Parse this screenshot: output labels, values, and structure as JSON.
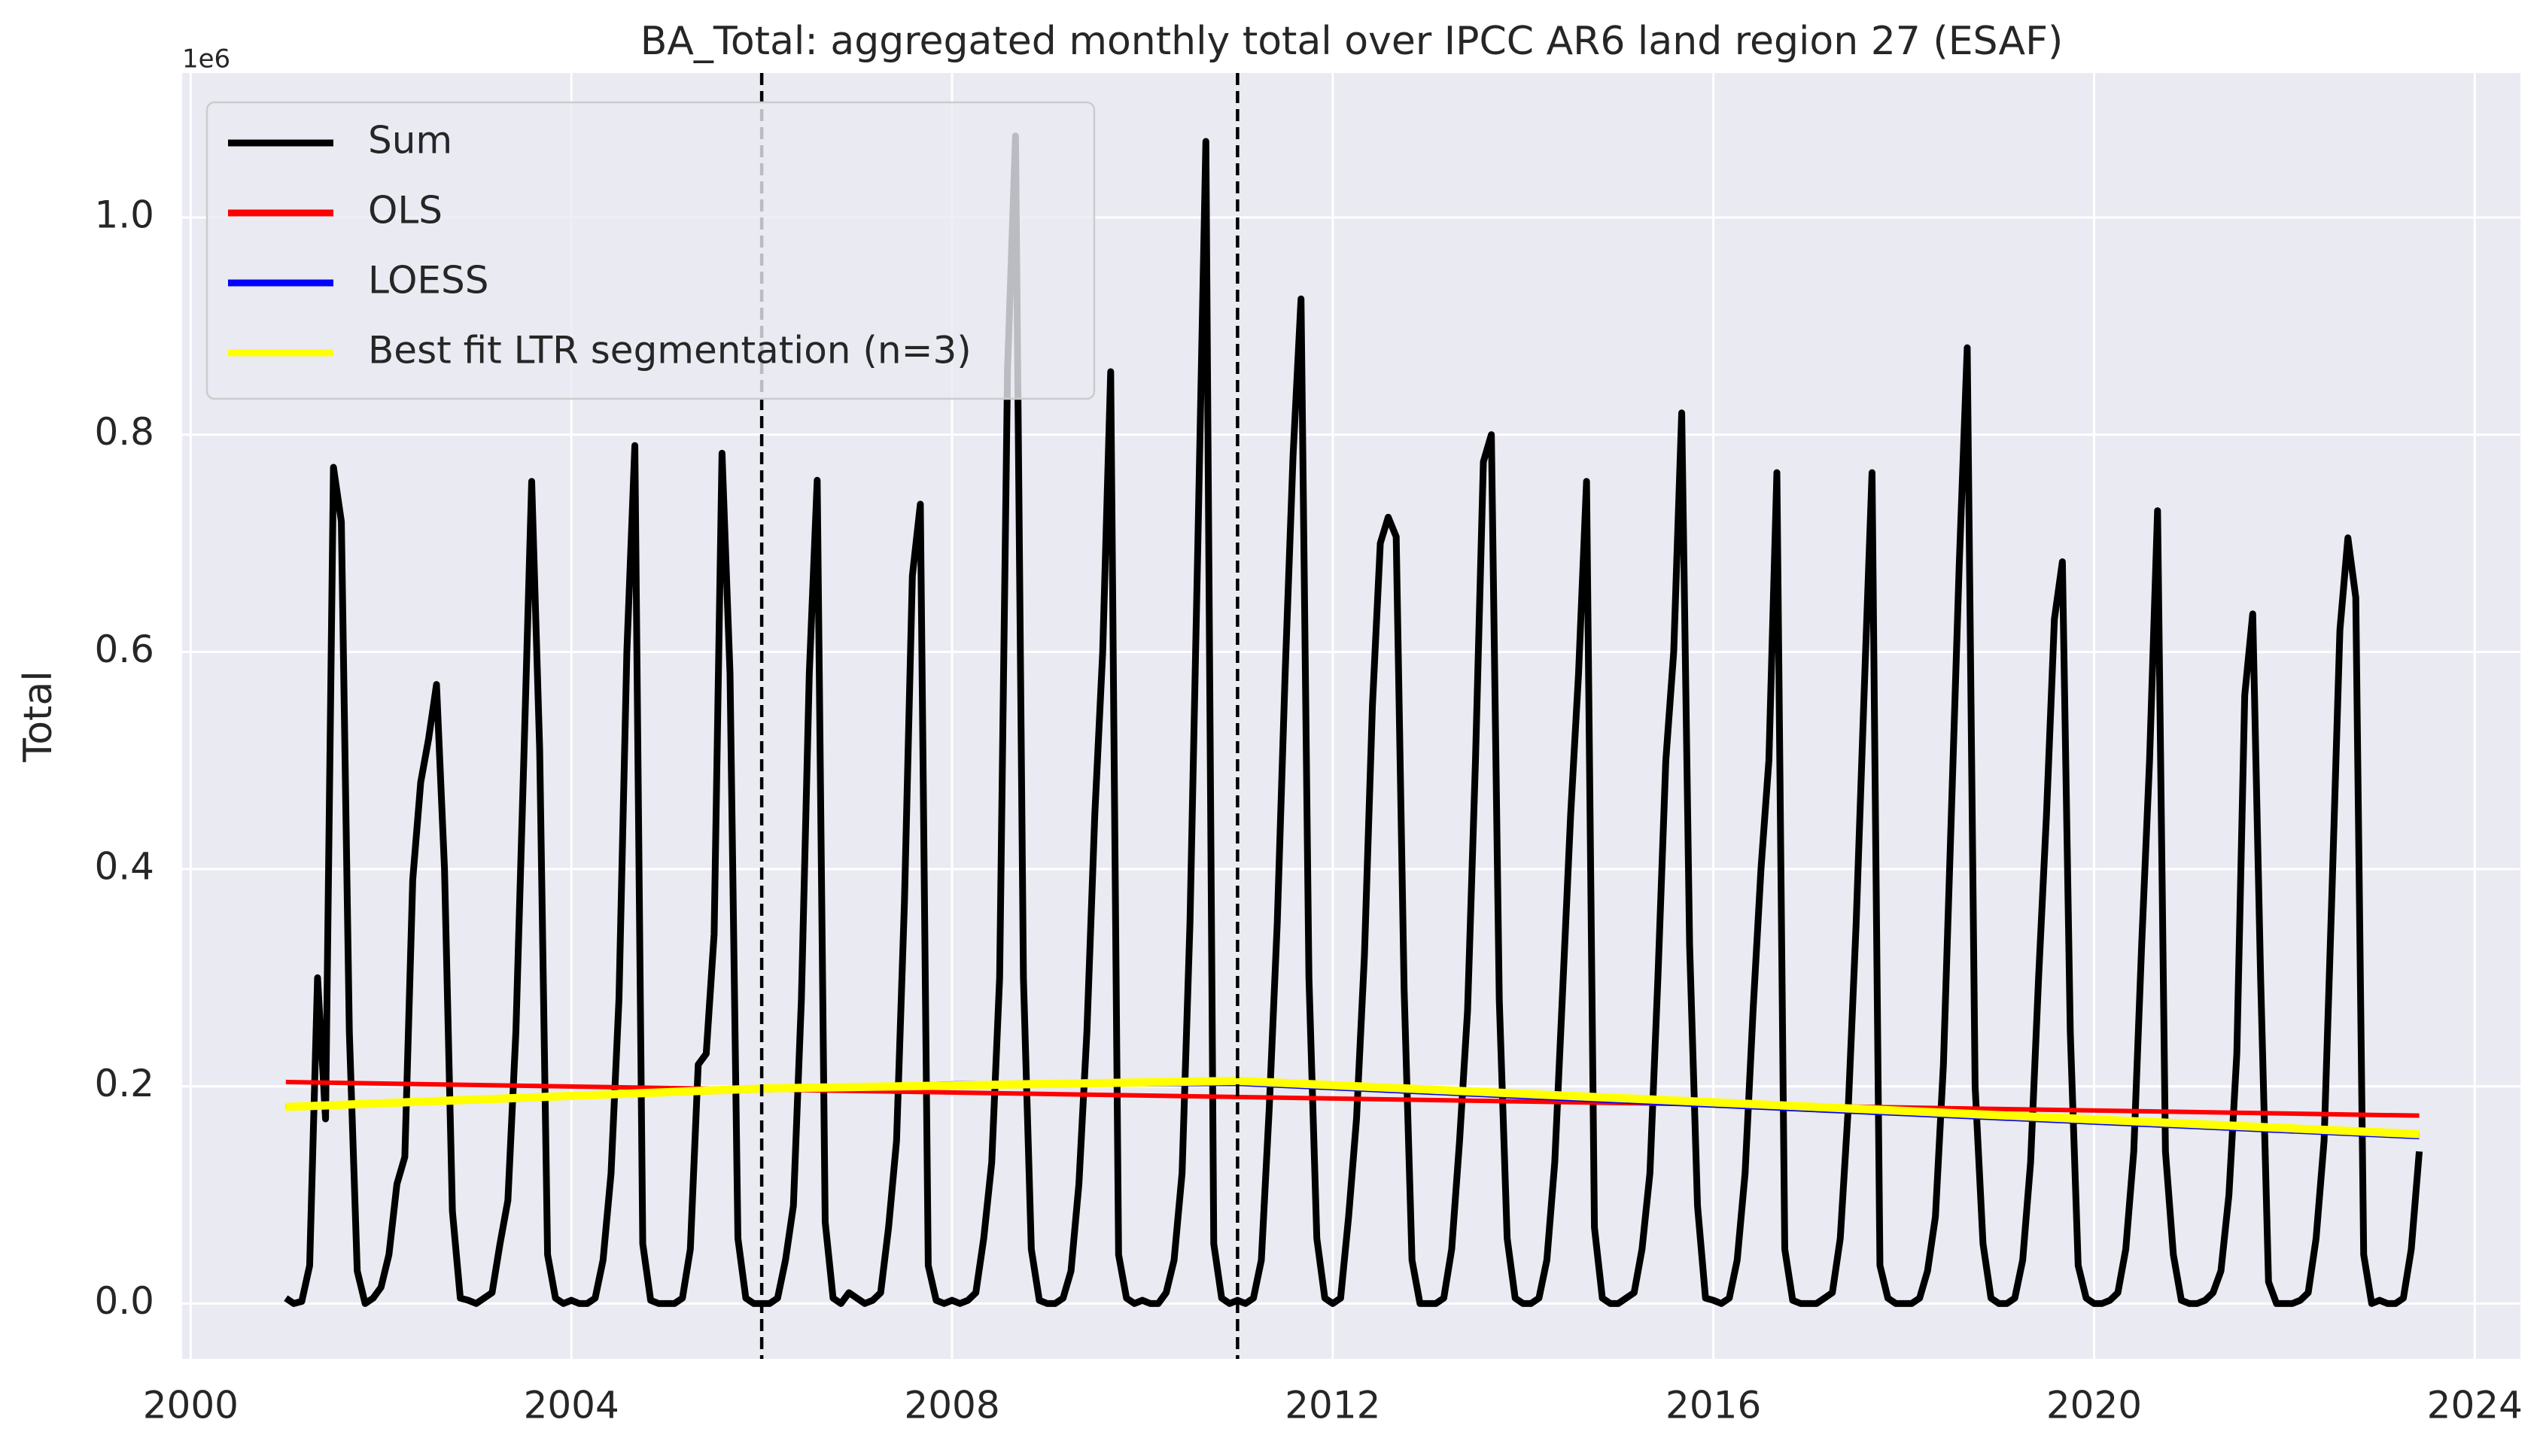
{
  "chart_data": {
    "type": "line",
    "title": "BA_Total: aggregated monthly total over IPCC AR6 land region 27 (ESAF)",
    "ylabel": "Total",
    "y_offset_text": "1e6",
    "xlim": [
      1999.91,
      2024.48
    ],
    "ylim": [
      -51000,
      1133000
    ],
    "xticks": [
      2000,
      2004,
      2008,
      2012,
      2016,
      2020,
      2024
    ],
    "yticks": [
      {
        "value": 0,
        "label": "0.0"
      },
      {
        "value": 200000,
        "label": "0.2"
      },
      {
        "value": 400000,
        "label": "0.4"
      },
      {
        "value": 600000,
        "label": "0.6"
      },
      {
        "value": 800000,
        "label": "0.8"
      },
      {
        "value": 1000000,
        "label": "1.0"
      }
    ],
    "grid": true,
    "legend_loc": "upper left",
    "vlines": [
      2006.0,
      2011.0
    ],
    "series": [
      {
        "name": "Sum",
        "color": "#000000",
        "x": [
          2001.0,
          2001.083,
          2001.167,
          2001.25,
          2001.333,
          2001.417,
          2001.5,
          2001.583,
          2001.667,
          2001.75,
          2001.833,
          2001.917,
          2002.0,
          2002.083,
          2002.167,
          2002.25,
          2002.333,
          2002.417,
          2002.5,
          2002.583,
          2002.667,
          2002.75,
          2002.833,
          2002.917,
          2003.0,
          2003.083,
          2003.167,
          2003.25,
          2003.333,
          2003.417,
          2003.5,
          2003.583,
          2003.667,
          2003.75,
          2003.833,
          2003.917,
          2004.0,
          2004.083,
          2004.167,
          2004.25,
          2004.333,
          2004.417,
          2004.5,
          2004.583,
          2004.667,
          2004.75,
          2004.833,
          2004.917,
          2005.0,
          2005.083,
          2005.167,
          2005.25,
          2005.333,
          2005.417,
          2005.5,
          2005.583,
          2005.667,
          2005.75,
          2005.833,
          2005.917,
          2006.0,
          2006.083,
          2006.167,
          2006.25,
          2006.333,
          2006.417,
          2006.5,
          2006.583,
          2006.667,
          2006.75,
          2006.833,
          2006.917,
          2007.0,
          2007.083,
          2007.167,
          2007.25,
          2007.333,
          2007.417,
          2007.5,
          2007.583,
          2007.667,
          2007.75,
          2007.833,
          2007.917,
          2008.0,
          2008.083,
          2008.167,
          2008.25,
          2008.333,
          2008.417,
          2008.5,
          2008.583,
          2008.667,
          2008.75,
          2008.833,
          2008.917,
          2009.0,
          2009.083,
          2009.167,
          2009.25,
          2009.333,
          2009.417,
          2009.5,
          2009.583,
          2009.667,
          2009.75,
          2009.833,
          2009.917,
          2010.0,
          2010.083,
          2010.167,
          2010.25,
          2010.333,
          2010.417,
          2010.5,
          2010.583,
          2010.667,
          2010.75,
          2010.833,
          2010.917,
          2011.0,
          2011.083,
          2011.167,
          2011.25,
          2011.333,
          2011.417,
          2011.5,
          2011.583,
          2011.667,
          2011.75,
          2011.833,
          2011.917,
          2012.0,
          2012.083,
          2012.167,
          2012.25,
          2012.333,
          2012.417,
          2012.5,
          2012.583,
          2012.667,
          2012.75,
          2012.833,
          2012.917,
          2013.0,
          2013.083,
          2013.167,
          2013.25,
          2013.333,
          2013.417,
          2013.5,
          2013.583,
          2013.667,
          2013.75,
          2013.833,
          2013.917,
          2014.0,
          2014.083,
          2014.167,
          2014.25,
          2014.333,
          2014.417,
          2014.5,
          2014.583,
          2014.667,
          2014.75,
          2014.833,
          2014.917,
          2015.0,
          2015.083,
          2015.167,
          2015.25,
          2015.333,
          2015.417,
          2015.5,
          2015.583,
          2015.667,
          2015.75,
          2015.833,
          2015.917,
          2016.0,
          2016.083,
          2016.167,
          2016.25,
          2016.333,
          2016.417,
          2016.5,
          2016.583,
          2016.667,
          2016.75,
          2016.833,
          2016.917,
          2017.0,
          2017.083,
          2017.167,
          2017.25,
          2017.333,
          2017.417,
          2017.5,
          2017.583,
          2017.667,
          2017.75,
          2017.833,
          2017.917,
          2018.0,
          2018.083,
          2018.167,
          2018.25,
          2018.333,
          2018.417,
          2018.5,
          2018.583,
          2018.667,
          2018.75,
          2018.833,
          2018.917,
          2019.0,
          2019.083,
          2019.167,
          2019.25,
          2019.333,
          2019.417,
          2019.5,
          2019.583,
          2019.667,
          2019.75,
          2019.833,
          2019.917,
          2020.0,
          2020.083,
          2020.167,
          2020.25,
          2020.333,
          2020.417,
          2020.5,
          2020.583,
          2020.667,
          2020.75,
          2020.833,
          2020.917,
          2021.0,
          2021.083,
          2021.167,
          2021.25,
          2021.333,
          2021.417,
          2021.5,
          2021.583,
          2021.667,
          2021.75,
          2021.833,
          2021.917,
          2022.0,
          2022.083,
          2022.167,
          2022.25,
          2022.333,
          2022.417,
          2022.5,
          2022.583,
          2022.667,
          2022.75,
          2022.833,
          2022.917,
          2023.0,
          2023.083,
          2023.167,
          2023.25,
          2023.333,
          2023.417
        ],
        "values": [
          5000,
          0,
          2000,
          35000,
          300000,
          170000,
          770000,
          720000,
          250000,
          30000,
          0,
          5000,
          15000,
          45000,
          110000,
          135000,
          390000,
          480000,
          520000,
          570000,
          400000,
          85000,
          5000,
          3000,
          0,
          5000,
          10000,
          55000,
          95000,
          250000,
          500000,
          757000,
          510000,
          45000,
          5000,
          0,
          3000,
          0,
          0,
          5000,
          40000,
          120000,
          280000,
          600000,
          790000,
          55000,
          3000,
          0,
          0,
          0,
          5000,
          50000,
          220000,
          230000,
          340000,
          783000,
          580000,
          60000,
          5000,
          0,
          0,
          0,
          5000,
          40000,
          90000,
          280000,
          580000,
          758000,
          75000,
          5000,
          0,
          10000,
          5000,
          0,
          3000,
          10000,
          70000,
          150000,
          370000,
          670000,
          736000,
          35000,
          3000,
          0,
          3000,
          0,
          3000,
          10000,
          60000,
          130000,
          300000,
          860000,
          1075000,
          300000,
          50000,
          3000,
          0,
          0,
          5000,
          30000,
          110000,
          250000,
          450000,
          600000,
          858000,
          45000,
          5000,
          0,
          3000,
          0,
          0,
          10000,
          40000,
          120000,
          350000,
          700000,
          1070000,
          55000,
          5000,
          0,
          3000,
          0,
          5000,
          40000,
          180000,
          350000,
          580000,
          780000,
          925000,
          300000,
          60000,
          5000,
          0,
          5000,
          80000,
          170000,
          320000,
          550000,
          700000,
          724000,
          706000,
          290000,
          40000,
          0,
          0,
          0,
          5000,
          50000,
          150000,
          270000,
          500000,
          775000,
          800000,
          280000,
          60000,
          5000,
          0,
          0,
          5000,
          40000,
          130000,
          290000,
          450000,
          580000,
          757000,
          70000,
          5000,
          0,
          0,
          5000,
          10000,
          50000,
          120000,
          300000,
          500000,
          600000,
          820000,
          330000,
          90000,
          5000,
          3000,
          0,
          5000,
          40000,
          120000,
          270000,
          400000,
          500000,
          765000,
          50000,
          3000,
          0,
          0,
          0,
          5000,
          10000,
          60000,
          180000,
          350000,
          560000,
          765000,
          35000,
          5000,
          0,
          0,
          0,
          5000,
          30000,
          80000,
          220000,
          450000,
          680000,
          880000,
          200000,
          55000,
          5000,
          0,
          0,
          5000,
          40000,
          130000,
          300000,
          450000,
          630000,
          683000,
          250000,
          35000,
          5000,
          0,
          0,
          3000,
          10000,
          50000,
          140000,
          330000,
          500000,
          730000,
          140000,
          45000,
          3000,
          0,
          0,
          3000,
          10000,
          30000,
          100000,
          230000,
          560000,
          635000,
          300000,
          20000,
          0,
          0,
          0,
          3000,
          10000,
          60000,
          150000,
          380000,
          620000,
          705000,
          650000,
          45000,
          0,
          3000,
          0,
          0,
          5000,
          50000,
          140000
        ]
      },
      {
        "name": "OLS",
        "color": "#ff0000",
        "x": [
          2001.0,
          2023.417
        ],
        "values": [
          204000,
          173000
        ]
      },
      {
        "name": "LOESS",
        "color": "#0000ff",
        "x": [
          2001.0,
          2006.0,
          2008.0,
          2011.0,
          2016.0,
          2023.417
        ],
        "values": [
          181000,
          197000,
          202000,
          203000,
          183000,
          154000
        ]
      },
      {
        "name": "Best fit LTR segmentation (n=3)",
        "color": "#ffff00",
        "x": [
          2001.0,
          2006.0,
          2011.0,
          2023.417
        ],
        "values": [
          181000,
          198000,
          205000,
          156000
        ]
      }
    ]
  }
}
